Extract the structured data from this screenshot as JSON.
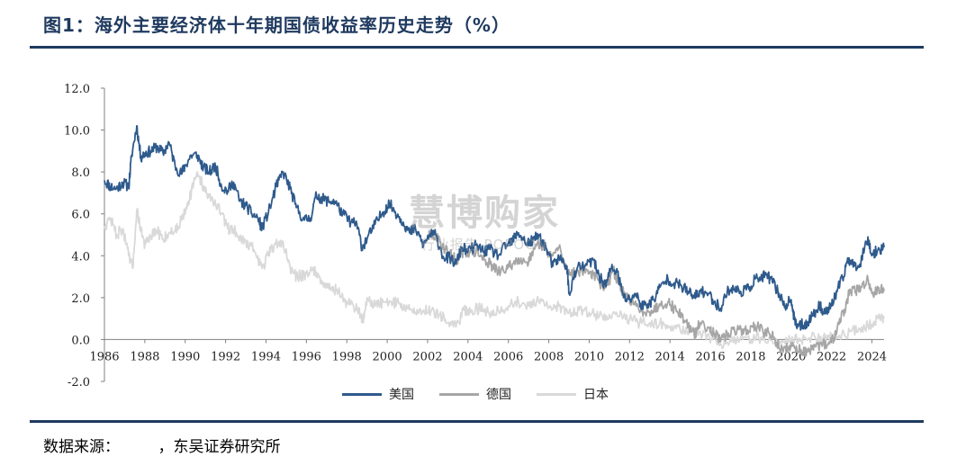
{
  "figure": {
    "title": "图1：海外主要经济体十年期国债收益率历史走势（%）",
    "source": "数据来源：　　　，东吴证券研究所",
    "watermark_main": "慧博购家",
    "watermark_sub": "行业报告 POPOON"
  },
  "colors": {
    "us": "#2e5a8c",
    "de": "#a6a6a6",
    "jp": "#d9d9d9",
    "axis": "#808080",
    "title": "#1f3a5f"
  },
  "chart_data": {
    "type": "line",
    "title": "",
    "xlabel": "",
    "ylabel": "",
    "xlim": [
      1986,
      2024.6
    ],
    "ylim": [
      -2.0,
      12.0
    ],
    "yticks": [
      "12.0",
      "10.0",
      "8.0",
      "6.0",
      "4.0",
      "2.0",
      "0.0",
      "-2.0"
    ],
    "ytick_values": [
      12,
      10,
      8,
      6,
      4,
      2,
      0,
      -2
    ],
    "xticks": [
      "1986",
      "1988",
      "1990",
      "1992",
      "1994",
      "1996",
      "1998",
      "2000",
      "2002",
      "2004",
      "2006",
      "2008",
      "2010",
      "2012",
      "2014",
      "2016",
      "2018",
      "2020",
      "2022",
      "2024"
    ],
    "grid": false,
    "legend": "bottom-center",
    "series": [
      {
        "name": "美国",
        "key": "us",
        "x": [
          1986.0,
          1986.3,
          1986.6,
          1986.9,
          1987.2,
          1987.35,
          1987.6,
          1987.8,
          1988.0,
          1988.3,
          1988.6,
          1988.9,
          1989.2,
          1989.5,
          1989.8,
          1990.0,
          1990.3,
          1990.6,
          1990.9,
          1991.2,
          1991.5,
          1991.8,
          1992.1,
          1992.4,
          1992.7,
          1993.0,
          1993.3,
          1993.6,
          1993.8,
          1994.2,
          1994.5,
          1994.85,
          1995.2,
          1995.5,
          1995.9,
          1996.2,
          1996.5,
          1996.8,
          1997.1,
          1997.4,
          1997.8,
          1998.2,
          1998.5,
          1998.75,
          1999.0,
          1999.4,
          1999.8,
          2000.1,
          2000.4,
          2000.8,
          2001.1,
          2001.4,
          2001.8,
          2002.1,
          2002.4,
          2002.8,
          2003.1,
          2003.4,
          2003.7,
          2004.0,
          2004.4,
          2004.8,
          2005.1,
          2005.5,
          2005.9,
          2006.2,
          2006.5,
          2006.9,
          2007.2,
          2007.5,
          2007.9,
          2008.2,
          2008.5,
          2008.9,
          2009.0,
          2009.4,
          2009.8,
          2010.2,
          2010.5,
          2010.8,
          2011.1,
          2011.4,
          2011.7,
          2012.0,
          2012.3,
          2012.6,
          2012.9,
          2013.2,
          2013.5,
          2013.9,
          2014.2,
          2014.5,
          2014.9,
          2015.2,
          2015.5,
          2015.9,
          2016.2,
          2016.5,
          2016.9,
          2017.2,
          2017.5,
          2017.9,
          2018.2,
          2018.5,
          2018.8,
          2019.1,
          2019.4,
          2019.7,
          2020.0,
          2020.2,
          2020.5,
          2020.8,
          2021.1,
          2021.4,
          2021.7,
          2022.0,
          2022.3,
          2022.6,
          2022.8,
          2023.1,
          2023.4,
          2023.8,
          2024.0,
          2024.3,
          2024.6
        ],
        "y": [
          7.6,
          7.3,
          7.2,
          7.5,
          7.3,
          8.8,
          10.2,
          8.7,
          8.9,
          9.0,
          9.2,
          8.9,
          9.4,
          8.3,
          7.9,
          8.3,
          8.8,
          8.8,
          8.2,
          8.0,
          8.3,
          7.3,
          7.1,
          7.5,
          6.6,
          6.4,
          6.0,
          5.8,
          5.3,
          6.3,
          7.3,
          8.0,
          7.2,
          6.3,
          5.7,
          5.8,
          6.9,
          6.7,
          6.6,
          6.6,
          6.0,
          5.6,
          5.5,
          4.4,
          4.8,
          5.5,
          6.1,
          6.5,
          6.1,
          5.6,
          5.1,
          5.3,
          4.5,
          5.0,
          5.0,
          3.9,
          3.9,
          3.6,
          4.4,
          4.2,
          4.5,
          4.2,
          4.3,
          4.0,
          4.5,
          4.7,
          5.1,
          4.6,
          4.7,
          5.0,
          4.3,
          3.5,
          3.9,
          3.5,
          2.2,
          3.4,
          3.5,
          3.8,
          3.0,
          2.6,
          3.4,
          3.2,
          2.0,
          1.9,
          2.2,
          1.6,
          1.7,
          1.9,
          2.5,
          2.9,
          2.7,
          2.6,
          2.3,
          2.0,
          2.3,
          2.2,
          1.8,
          1.5,
          2.4,
          2.4,
          2.3,
          2.4,
          2.9,
          2.9,
          3.1,
          2.7,
          2.2,
          1.6,
          1.9,
          0.7,
          0.7,
          0.8,
          1.2,
          1.6,
          1.3,
          1.6,
          2.4,
          3.0,
          3.9,
          3.5,
          3.6,
          4.9,
          4.0,
          4.3,
          4.4
        ]
      },
      {
        "name": "德国",
        "key": "de",
        "x": [
          2002.0,
          2002.4,
          2002.8,
          2003.1,
          2003.4,
          2003.7,
          2004.0,
          2004.4,
          2004.8,
          2005.1,
          2005.5,
          2005.9,
          2006.2,
          2006.5,
          2006.9,
          2007.2,
          2007.5,
          2007.9,
          2008.2,
          2008.5,
          2008.9,
          2009.2,
          2009.6,
          2009.9,
          2010.2,
          2010.6,
          2010.9,
          2011.2,
          2011.5,
          2011.8,
          2012.1,
          2012.5,
          2012.9,
          2013.2,
          2013.5,
          2013.9,
          2014.2,
          2014.6,
          2014.9,
          2015.2,
          2015.5,
          2015.9,
          2016.2,
          2016.5,
          2016.9,
          2017.2,
          2017.6,
          2017.9,
          2018.2,
          2018.6,
          2018.9,
          2019.2,
          2019.6,
          2019.9,
          2020.2,
          2020.5,
          2020.8,
          2021.1,
          2021.5,
          2021.9,
          2022.1,
          2022.4,
          2022.7,
          2022.9,
          2023.2,
          2023.5,
          2023.8,
          2024.0,
          2024.3,
          2024.6
        ],
        "y": [
          5.0,
          4.9,
          4.4,
          4.1,
          3.8,
          4.1,
          4.2,
          4.2,
          3.8,
          3.6,
          3.2,
          3.4,
          3.6,
          3.9,
          3.7,
          4.0,
          4.6,
          4.2,
          4.0,
          4.4,
          3.3,
          3.2,
          3.3,
          3.3,
          3.1,
          2.6,
          2.6,
          3.3,
          2.6,
          2.0,
          1.9,
          1.3,
          1.4,
          1.4,
          1.7,
          1.8,
          1.5,
          1.1,
          0.7,
          0.2,
          0.8,
          0.6,
          0.3,
          -0.1,
          0.3,
          0.4,
          0.5,
          0.4,
          0.7,
          0.4,
          0.3,
          0.0,
          -0.6,
          -0.3,
          -0.4,
          -0.5,
          -0.6,
          -0.5,
          -0.2,
          -0.2,
          0.1,
          1.0,
          1.5,
          2.4,
          2.3,
          2.5,
          2.9,
          2.2,
          2.5,
          2.3
        ]
      },
      {
        "name": "日本",
        "key": "jp",
        "x": [
          1986.0,
          1986.3,
          1986.6,
          1986.9,
          1987.2,
          1987.4,
          1987.6,
          1987.8,
          1988.0,
          1988.3,
          1988.6,
          1988.9,
          1989.2,
          1989.5,
          1989.8,
          1990.1,
          1990.3,
          1990.6,
          1990.9,
          1991.2,
          1991.5,
          1991.8,
          1992.1,
          1992.4,
          1992.7,
          1993.0,
          1993.4,
          1993.8,
          1994.1,
          1994.4,
          1994.8,
          1995.2,
          1995.5,
          1995.9,
          1996.2,
          1996.5,
          1996.9,
          1997.2,
          1997.5,
          1997.9,
          1998.2,
          1998.5,
          1998.8,
          1999.0,
          1999.4,
          1999.8,
          2000.2,
          2000.6,
          2001.0,
          2001.4,
          2001.8,
          2002.2,
          2002.6,
          2003.0,
          2003.4,
          2003.8,
          2004.2,
          2004.6,
          2005.0,
          2005.5,
          2006.0,
          2006.5,
          2007.0,
          2007.5,
          2008.0,
          2008.5,
          2009.0,
          2009.5,
          2010.0,
          2010.5,
          2011.0,
          2011.5,
          2012.0,
          2012.5,
          2013.0,
          2013.5,
          2014.0,
          2014.5,
          2015.0,
          2015.5,
          2016.0,
          2016.5,
          2017.0,
          2017.5,
          2018.0,
          2018.5,
          2019.0,
          2019.5,
          2020.0,
          2020.5,
          2021.0,
          2021.5,
          2022.0,
          2022.5,
          2023.0,
          2023.5,
          2024.0,
          2024.3,
          2024.6
        ],
        "y": [
          5.4,
          5.8,
          5.0,
          5.3,
          4.0,
          3.4,
          6.2,
          5.3,
          4.5,
          4.9,
          5.2,
          4.8,
          5.1,
          5.2,
          5.7,
          6.5,
          7.0,
          8.0,
          7.3,
          6.8,
          6.5,
          6.0,
          5.3,
          5.3,
          4.8,
          4.7,
          4.3,
          3.4,
          4.0,
          4.5,
          4.7,
          3.4,
          3.0,
          3.1,
          3.3,
          3.2,
          2.7,
          2.4,
          2.4,
          1.8,
          1.7,
          1.5,
          0.9,
          2.0,
          1.6,
          1.8,
          1.8,
          1.7,
          1.5,
          1.3,
          1.4,
          1.4,
          1.2,
          0.8,
          0.6,
          1.4,
          1.4,
          1.5,
          1.3,
          1.4,
          1.6,
          1.8,
          1.6,
          1.8,
          1.5,
          1.6,
          1.3,
          1.4,
          1.3,
          1.1,
          1.2,
          1.1,
          1.0,
          0.8,
          0.8,
          0.8,
          0.6,
          0.5,
          0.4,
          0.4,
          -0.1,
          -0.2,
          0.0,
          0.1,
          0.0,
          0.1,
          0.0,
          -0.2,
          0.0,
          0.0,
          0.1,
          0.0,
          0.2,
          0.2,
          0.4,
          0.6,
          0.7,
          1.0,
          1.0
        ]
      }
    ]
  }
}
